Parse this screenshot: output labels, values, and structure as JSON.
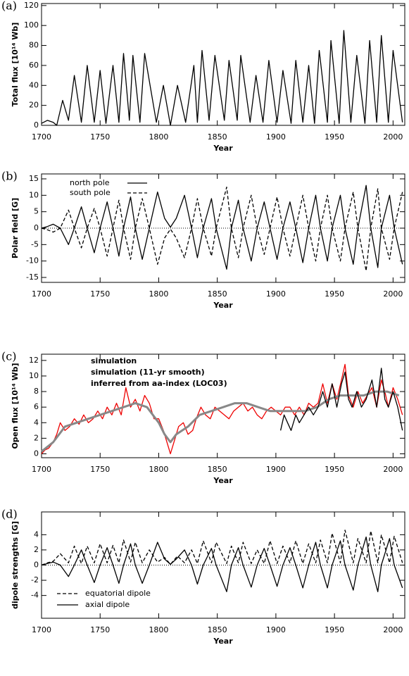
{
  "chart_data": [
    {
      "type": "line",
      "panel_label": "(a)",
      "xlabel": "Year",
      "ylabel": "Total flux [10¹⁴ Wb]",
      "xlim": [
        1700,
        2010
      ],
      "xticks": [
        1700,
        1750,
        1800,
        1850,
        1900,
        1950,
        2000
      ],
      "ylim": [
        0,
        122
      ],
      "yticks": [
        0,
        20,
        40,
        60,
        80,
        100,
        120
      ],
      "series": [
        {
          "name": null,
          "color": "#000000",
          "linestyle": "solid",
          "x": [
            1700,
            1705,
            1710,
            1713,
            1718,
            1723,
            1728,
            1734,
            1739,
            1745,
            1750,
            1755,
            1761,
            1766,
            1770,
            1775,
            1778,
            1784,
            1788,
            1798,
            1804,
            1810,
            1816,
            1823,
            1830,
            1833,
            1837,
            1843,
            1848,
            1856,
            1860,
            1867,
            1870,
            1878,
            1883,
            1889,
            1894,
            1901,
            1906,
            1913,
            1917,
            1923,
            1928,
            1933,
            1937,
            1944,
            1947,
            1954,
            1958,
            1964,
            1969,
            1976,
            1980,
            1986,
            1990,
            1996,
            2000,
            2008
          ],
          "values": [
            2,
            5,
            3,
            0,
            25,
            5,
            50,
            3,
            60,
            3,
            55,
            2,
            60,
            3,
            72,
            5,
            70,
            3,
            72,
            3,
            40,
            0,
            40,
            3,
            60,
            3,
            75,
            5,
            70,
            5,
            65,
            5,
            70,
            3,
            50,
            3,
            65,
            3,
            55,
            2,
            65,
            3,
            60,
            2,
            75,
            3,
            85,
            2,
            95,
            3,
            70,
            2,
            85,
            3,
            90,
            3,
            75,
            3
          ]
        }
      ]
    },
    {
      "type": "line",
      "panel_label": "(b)",
      "xlabel": "Year",
      "ylabel": "Polar field [G]",
      "zero_line": true,
      "legend": "upper left",
      "xlim": [
        1700,
        2010
      ],
      "xticks": [
        1700,
        1750,
        1800,
        1850,
        1900,
        1950,
        2000
      ],
      "ylim": [
        -16.5,
        16.5
      ],
      "yticks": [
        -15,
        -10,
        -5,
        0,
        5,
        10,
        15
      ],
      "series": [
        {
          "name": "north pole",
          "color": "#000000",
          "linestyle": "solid",
          "x": [
            1700,
            1705,
            1710,
            1716,
            1723,
            1728,
            1734,
            1739,
            1745,
            1750,
            1756,
            1761,
            1766,
            1770,
            1776,
            1780,
            1786,
            1792,
            1799,
            1805,
            1810,
            1815,
            1822,
            1828,
            1833,
            1838,
            1845,
            1849,
            1858,
            1862,
            1868,
            1872,
            1879,
            1884,
            1890,
            1895,
            1901,
            1906,
            1912,
            1917,
            1923,
            1928,
            1934,
            1938,
            1944,
            1948,
            1955,
            1959,
            1966,
            1970,
            1977,
            1981,
            1987,
            1990,
            1997,
            2001,
            2008
          ],
          "values": [
            0,
            0.5,
            1.2,
            0,
            -5,
            0,
            6.5,
            0,
            -7.5,
            0,
            8,
            0,
            -8.5,
            0,
            9.5,
            0,
            -9.5,
            0,
            11,
            3,
            0.3,
            3,
            10,
            0,
            -9,
            0,
            9,
            0,
            -12.5,
            0,
            8.5,
            0,
            -10,
            0,
            8,
            0,
            -9.5,
            0,
            8,
            0,
            -10.5,
            0,
            10,
            0,
            -10,
            0,
            10,
            0,
            -11,
            0,
            13,
            0,
            -12,
            0,
            10,
            0,
            -11
          ]
        },
        {
          "name": "south pole",
          "color": "#000000",
          "linestyle": "dashed",
          "x": [
            1700,
            1705,
            1710,
            1716,
            1723,
            1728,
            1734,
            1739,
            1745,
            1750,
            1756,
            1761,
            1766,
            1770,
            1776,
            1780,
            1786,
            1792,
            1799,
            1805,
            1810,
            1815,
            1822,
            1828,
            1833,
            1838,
            1845,
            1849,
            1858,
            1862,
            1868,
            1872,
            1879,
            1884,
            1890,
            1895,
            1901,
            1906,
            1912,
            1917,
            1923,
            1928,
            1934,
            1938,
            1944,
            1948,
            1955,
            1959,
            1966,
            1970,
            1977,
            1981,
            1987,
            1990,
            1997,
            2001,
            2008
          ],
          "values": [
            0,
            -0.5,
            -1.2,
            0,
            5.5,
            0,
            -6,
            0,
            6,
            0,
            -8.5,
            0,
            8.5,
            0,
            -9.5,
            0,
            9,
            0,
            -11,
            -3,
            -0.3,
            -3,
            -9,
            0,
            9,
            0,
            -8.5,
            0,
            12.5,
            0,
            -9,
            0,
            10,
            0,
            -8,
            0,
            9.5,
            0,
            -8.5,
            0,
            10,
            0,
            -10,
            0,
            10,
            0,
            -10,
            0,
            11,
            0,
            -13,
            0,
            12,
            0,
            -9.5,
            0,
            11
          ]
        }
      ]
    },
    {
      "type": "line",
      "panel_label": "(c)",
      "xlabel": "Year",
      "ylabel": "Open flux [10¹⁴ Wb]",
      "legend": "upper center",
      "legend_text_colored": true,
      "xlim": [
        1700,
        2010
      ],
      "xticks": [
        1700,
        1750,
        1800,
        1850,
        1900,
        1950,
        2000
      ],
      "ylim": [
        -0.5,
        12.8
      ],
      "yticks": [
        0,
        2,
        4,
        6,
        8,
        10,
        12
      ],
      "series": [
        {
          "name": "simulation",
          "color": "#ee0000",
          "linestyle": "solid",
          "width": 1.3,
          "x": [
            1700,
            1703,
            1706,
            1710,
            1713,
            1716,
            1720,
            1724,
            1728,
            1732,
            1736,
            1740,
            1744,
            1748,
            1752,
            1756,
            1760,
            1764,
            1768,
            1772,
            1776,
            1780,
            1784,
            1788,
            1792,
            1796,
            1800,
            1804,
            1808,
            1810,
            1813,
            1817,
            1821,
            1825,
            1829,
            1832,
            1836,
            1840,
            1844,
            1848,
            1852,
            1856,
            1860,
            1864,
            1868,
            1872,
            1876,
            1880,
            1884,
            1888,
            1892,
            1896,
            1900,
            1904,
            1908,
            1912,
            1916,
            1920,
            1924,
            1928,
            1932,
            1936,
            1940,
            1944,
            1948,
            1952,
            1956,
            1959,
            1962,
            1966,
            1970,
            1974,
            1978,
            1982,
            1986,
            1990,
            1993,
            1996,
            2000,
            2004,
            2008
          ],
          "values": [
            0,
            0.5,
            0.7,
            1.5,
            2.5,
            4,
            3,
            3.5,
            4.5,
            3.8,
            5,
            4,
            4.5,
            5.5,
            4.5,
            6,
            5,
            6.5,
            5,
            8.5,
            6,
            7,
            5.5,
            7.5,
            6.5,
            4.5,
            4.5,
            3,
            1,
            0,
            1.5,
            3.5,
            4,
            2.5,
            3,
            4.5,
            6,
            5,
            4.5,
            6,
            5.5,
            5,
            4.5,
            5.5,
            6,
            6.5,
            5.5,
            6,
            5,
            4.5,
            5.5,
            6,
            5.5,
            5,
            6,
            6,
            5,
            6,
            5,
            6.5,
            6,
            6.5,
            9,
            6.5,
            9,
            7,
            9.5,
            11.5,
            7.5,
            6,
            8,
            6.5,
            7.5,
            8.5,
            6,
            9.5,
            8,
            6,
            8.5,
            7,
            5
          ]
        },
        {
          "name": "simulation (11-yr smooth)",
          "color": "#888888",
          "linestyle": "solid",
          "width": 3,
          "x": [
            1700,
            1710,
            1720,
            1730,
            1740,
            1750,
            1760,
            1770,
            1780,
            1790,
            1800,
            1805,
            1810,
            1815,
            1825,
            1835,
            1845,
            1855,
            1865,
            1875,
            1885,
            1895,
            1905,
            1915,
            1925,
            1935,
            1945,
            1955,
            1965,
            1975,
            1985,
            1995,
            2005
          ],
          "values": [
            0.3,
            1.5,
            3.5,
            4,
            4.5,
            5,
            5.5,
            6,
            6.5,
            6,
            4,
            2.5,
            1.5,
            2.5,
            3.5,
            5,
            5.5,
            6,
            6.5,
            6.5,
            6,
            5.5,
            5.5,
            5.5,
            5.5,
            6,
            7,
            7.5,
            7.5,
            7.5,
            8,
            8,
            7.5
          ]
        },
        {
          "name": "inferred from aa-index (LOC03)",
          "color": "#000000",
          "linestyle": "solid",
          "width": 1.3,
          "x": [
            1904,
            1907,
            1910,
            1913,
            1917,
            1920,
            1924,
            1928,
            1932,
            1936,
            1940,
            1944,
            1948,
            1952,
            1956,
            1959,
            1962,
            1965,
            1969,
            1973,
            1977,
            1982,
            1986,
            1990,
            1993,
            1996,
            2000,
            2004,
            2008
          ],
          "values": [
            3,
            5,
            4,
            3,
            5,
            4,
            5,
            6,
            5,
            6,
            8,
            6,
            9,
            6,
            9,
            10.5,
            7,
            6,
            8,
            6,
            7,
            9.5,
            6,
            11,
            7,
            6,
            8,
            6,
            3
          ]
        }
      ]
    },
    {
      "type": "line",
      "panel_label": "(d)",
      "xlabel": "Year",
      "ylabel": "dipole strengths [G]",
      "zero_line": true,
      "legend": "lower left",
      "xlim": [
        1700,
        2010
      ],
      "xticks": [
        1700,
        1750,
        1800,
        1850,
        1900,
        1950,
        2000
      ],
      "ylim": [
        -7,
        7
      ],
      "yticks": [
        -4,
        -2,
        0,
        2,
        4
      ],
      "series": [
        {
          "name": "equatorial dipole",
          "color": "#000000",
          "linestyle": "dashed",
          "x": [
            1700,
            1705,
            1710,
            1716,
            1723,
            1728,
            1734,
            1739,
            1745,
            1750,
            1756,
            1761,
            1766,
            1770,
            1776,
            1780,
            1786,
            1792,
            1799,
            1805,
            1810,
            1816,
            1822,
            1828,
            1833,
            1838,
            1845,
            1849,
            1858,
            1862,
            1868,
            1872,
            1879,
            1884,
            1890,
            1895,
            1901,
            1906,
            1912,
            1917,
            1923,
            1928,
            1934,
            1938,
            1944,
            1948,
            1955,
            1959,
            1966,
            1970,
            1977,
            1981,
            1987,
            1990,
            1997,
            2001,
            2008
          ],
          "values": [
            0,
            0.3,
            0.5,
            1.5,
            0.3,
            2.5,
            0.2,
            2.5,
            0.3,
            2.8,
            0.3,
            2.6,
            0.3,
            3.3,
            0.4,
            3,
            0.3,
            2,
            0.4,
            1,
            0.1,
            1.2,
            0.3,
            2,
            0.2,
            3.2,
            0.3,
            3,
            0.2,
            2.5,
            0.3,
            3,
            0.2,
            2,
            0.2,
            3.2,
            0.2,
            2.5,
            0.3,
            3.2,
            0.2,
            2.8,
            0.3,
            3.3,
            0.3,
            4.2,
            0.3,
            4.6,
            0.3,
            3.5,
            0.3,
            4.5,
            0.3,
            4,
            0.3,
            3.8,
            0.3
          ]
        },
        {
          "name": "axial dipole",
          "color": "#000000",
          "linestyle": "solid",
          "x": [
            1700,
            1705,
            1710,
            1716,
            1723,
            1728,
            1734,
            1739,
            1745,
            1750,
            1756,
            1761,
            1766,
            1770,
            1776,
            1780,
            1786,
            1792,
            1799,
            1805,
            1810,
            1815,
            1822,
            1828,
            1833,
            1838,
            1845,
            1849,
            1858,
            1862,
            1868,
            1872,
            1879,
            1884,
            1890,
            1895,
            1901,
            1906,
            1912,
            1917,
            1923,
            1928,
            1934,
            1938,
            1944,
            1948,
            1955,
            1959,
            1966,
            1970,
            1977,
            1981,
            1987,
            1990,
            1997,
            2001,
            2008
          ],
          "values": [
            0,
            0.2,
            0.4,
            0,
            -1.5,
            0,
            2,
            0,
            -2.3,
            0,
            2.3,
            0,
            -2.4,
            0,
            2.8,
            0,
            -2.4,
            0,
            3,
            0.8,
            0.1,
            0.8,
            2,
            0,
            -2.5,
            0,
            2.2,
            0,
            -3.5,
            0,
            2.3,
            0,
            -2.9,
            0,
            2.2,
            0,
            -2.8,
            0,
            2.3,
            0,
            -3,
            0,
            3,
            0,
            -3,
            0,
            3.2,
            0,
            -3.3,
            0,
            3.7,
            0,
            -3.5,
            0,
            3.5,
            0,
            -3
          ]
        }
      ]
    }
  ]
}
